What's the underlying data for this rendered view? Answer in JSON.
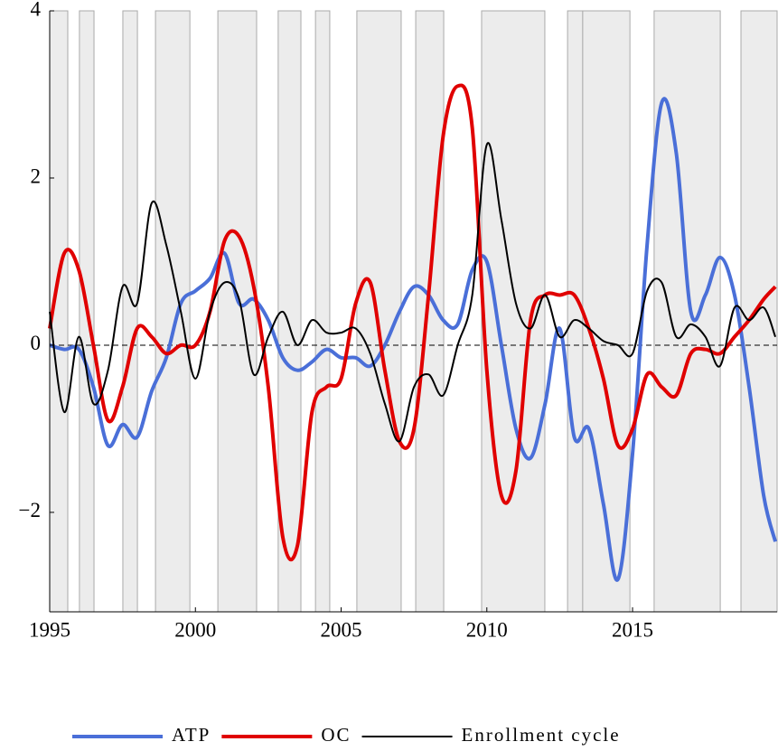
{
  "chart_data": {
    "type": "line",
    "x": [
      1995,
      1995.5,
      1996,
      1996.5,
      1997,
      1997.5,
      1998,
      1998.5,
      1999,
      1999.5,
      2000,
      2000.5,
      2001,
      2001.5,
      2002,
      2002.5,
      2003,
      2003.5,
      2004,
      2004.5,
      2005,
      2005.5,
      2006,
      2006.5,
      2007,
      2007.5,
      2008,
      2008.5,
      2009,
      2009.5,
      2010,
      2010.5,
      2011,
      2011.5,
      2012,
      2012.5,
      2013,
      2013.5,
      2014,
      2014.5,
      2015,
      2015.5,
      2016,
      2016.5,
      2017,
      2017.5,
      2018,
      2018.5,
      2019,
      2019.5,
      2019.9
    ],
    "series": [
      {
        "name": "ATP",
        "color": "#4a6fd8",
        "width": 4,
        "values": [
          0,
          -0.05,
          -0.05,
          -0.5,
          -1.2,
          -0.95,
          -1.1,
          -0.55,
          -0.15,
          0.5,
          0.65,
          0.8,
          1.1,
          0.5,
          0.55,
          0.3,
          -0.15,
          -0.3,
          -0.2,
          -0.05,
          -0.15,
          -0.15,
          -0.25,
          0,
          0.4,
          0.7,
          0.6,
          0.3,
          0.25,
          0.9,
          1.0,
          0,
          -1.0,
          -1.35,
          -0.7,
          0.2,
          -1.1,
          -1.0,
          -1.9,
          -2.8,
          -1.3,
          1.2,
          2.9,
          2.3,
          0.4,
          0.6,
          1.05,
          0.6,
          -0.5,
          -1.8,
          -2.35
        ]
      },
      {
        "name": "OC",
        "color": "#e00000",
        "width": 4,
        "values": [
          0.2,
          1.1,
          0.9,
          0,
          -0.9,
          -0.5,
          0.2,
          0.1,
          -0.1,
          0,
          0,
          0.4,
          1.25,
          1.3,
          0.7,
          -0.5,
          -2.3,
          -2.4,
          -0.8,
          -0.5,
          -0.4,
          0.5,
          0.75,
          -0.3,
          -1.15,
          -1.0,
          0.6,
          2.5,
          3.1,
          2.6,
          -0.3,
          -1.8,
          -1.5,
          0.3,
          0.6,
          0.6,
          0.6,
          0.2,
          -0.4,
          -1.2,
          -1.0,
          -0.35,
          -0.5,
          -0.6,
          -0.1,
          -0.05,
          -0.1,
          0.1,
          0.3,
          0.55,
          0.7
        ]
      },
      {
        "name": "Enrollment cycle",
        "color": "#000000",
        "width": 2,
        "values": [
          0.4,
          -0.8,
          0.1,
          -0.7,
          -0.3,
          0.7,
          0.5,
          1.7,
          1.2,
          0.4,
          -0.4,
          0.4,
          0.75,
          0.55,
          -0.35,
          0.1,
          0.4,
          0,
          0.3,
          0.15,
          0.15,
          0.2,
          -0.1,
          -0.7,
          -1.15,
          -0.5,
          -0.35,
          -0.6,
          0,
          0.6,
          2.4,
          1.5,
          0.5,
          0.2,
          0.6,
          0.1,
          0.3,
          0.2,
          0.05,
          0,
          -0.1,
          0.65,
          0.75,
          0.1,
          0.25,
          0.1,
          -0.25,
          0.45,
          0.3,
          0.45,
          0.1
        ]
      }
    ],
    "shaded_periods": [
      [
        1995,
        1995.62
      ],
      [
        1996.02,
        1996.52
      ],
      [
        1997.51,
        1998.01
      ],
      [
        1998.63,
        1999.81
      ],
      [
        2000.77,
        2002.1
      ],
      [
        2002.84,
        2003.62
      ],
      [
        2004.12,
        2004.61
      ],
      [
        2005.54,
        2007.06
      ],
      [
        2007.56,
        2008.52
      ],
      [
        2009.82,
        2011.99
      ],
      [
        2012.77,
        2013.29
      ],
      [
        2013.29,
        2014.91
      ],
      [
        2015.74,
        2018.01
      ],
      [
        2018.72,
        2019.96
      ]
    ],
    "shade_color": "#ececec",
    "reference_line": 0,
    "xlim": [
      1995,
      2019.96
    ],
    "ylim": [
      -3.19,
      4
    ],
    "xticks": [
      1995,
      2000,
      2005,
      2010,
      2015
    ],
    "yticks": [
      {
        "value": -2,
        "label": "−2"
      },
      0,
      2,
      4
    ],
    "legend": "bottom"
  }
}
